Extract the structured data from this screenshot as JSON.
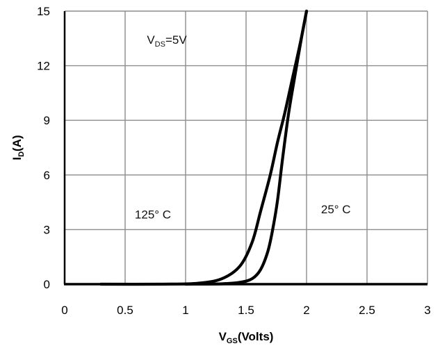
{
  "chart_data": {
    "type": "line",
    "xlabel": {
      "main": "V",
      "sub": "GS",
      "suffix": "(Volts)"
    },
    "ylabel": {
      "main": "I",
      "sub": "D",
      "suffix": "(A)"
    },
    "xlim": [
      0,
      3
    ],
    "ylim": [
      0,
      15
    ],
    "xticks": [
      0,
      0.5,
      1,
      1.5,
      2,
      2.5,
      3
    ],
    "xtick_labels": [
      "0",
      "0.5",
      "1",
      "1.5",
      "2",
      "2.5",
      "3"
    ],
    "yticks": [
      0,
      3,
      6,
      9,
      12,
      15
    ],
    "ytick_labels": [
      "0",
      "3",
      "6",
      "9",
      "12",
      "15"
    ],
    "grid": true,
    "annotations": [
      {
        "text_main": "V",
        "text_sub": "DS",
        "text_suffix": "=5V",
        "x": 0.68,
        "y": 13.2
      },
      {
        "text_main": "125° C",
        "text_sub": "",
        "text_suffix": "",
        "x": 0.58,
        "y": 3.6
      },
      {
        "text_main": "25° C",
        "text_sub": "",
        "text_suffix": "",
        "x": 2.12,
        "y": 3.9
      }
    ],
    "series": [
      {
        "label": "125° C",
        "x": [
          0.3,
          0.8,
          1.1,
          1.3,
          1.45,
          1.55,
          1.62,
          1.7,
          1.76,
          1.82,
          1.88,
          1.95,
          2.0
        ],
        "y": [
          0,
          0,
          0.05,
          0.3,
          1.0,
          2.3,
          4.0,
          6.0,
          7.8,
          9.4,
          11.2,
          13.3,
          15.0
        ],
        "color": "#000000"
      },
      {
        "label": "25° C",
        "x": [
          1.0,
          1.3,
          1.45,
          1.55,
          1.62,
          1.68,
          1.72,
          1.76,
          1.8,
          1.85,
          1.9,
          1.96,
          2.0
        ],
        "y": [
          0,
          0.02,
          0.1,
          0.3,
          0.8,
          1.8,
          3.0,
          4.6,
          6.8,
          9.3,
          11.3,
          13.6,
          15.0
        ],
        "color": "#000000"
      }
    ]
  }
}
